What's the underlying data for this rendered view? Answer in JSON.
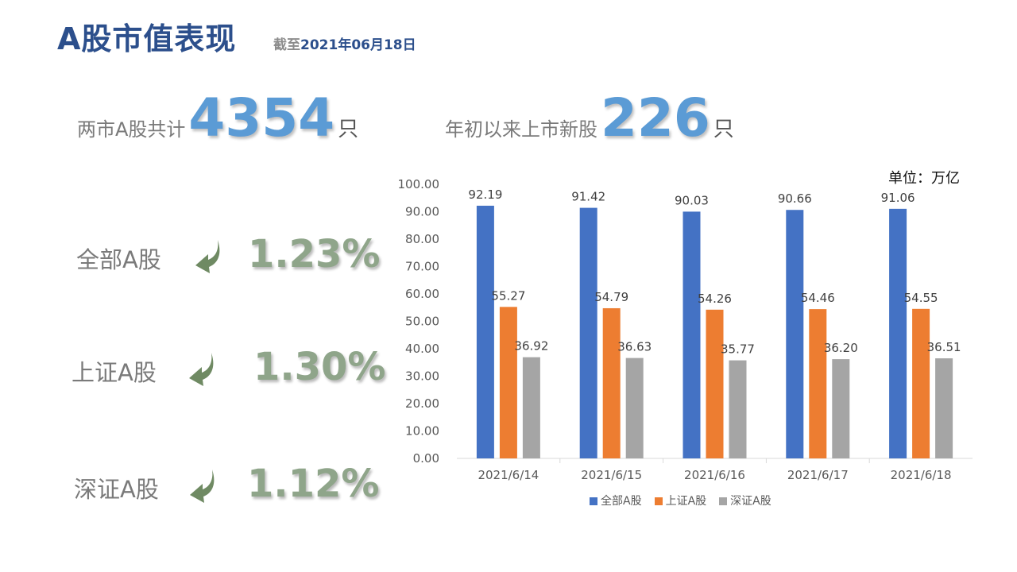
{
  "header": {
    "title": "A股市值表现",
    "asof_label": "截至",
    "asof_date": "2021年06月18日"
  },
  "stats": [
    {
      "label": "两市A股共计",
      "value": "4354",
      "unit": "只"
    },
    {
      "label": "年初以来上市新股",
      "value": "226",
      "unit": "只"
    }
  ],
  "changes": [
    {
      "name": "全部A股",
      "pct": "1.23%",
      "direction": "down"
    },
    {
      "name": "上证A股",
      "pct": "1.30%",
      "direction": "down"
    },
    {
      "name": "深证A股",
      "pct": "1.12%",
      "direction": "down"
    }
  ],
  "colors": {
    "title": "#2c4f8c",
    "stat_number": "#5b9bd5",
    "change_text": "#8fa58a",
    "arrow": "#6f8a63"
  },
  "chart_data": {
    "type": "bar",
    "unit_label": "单位：万亿",
    "categories": [
      "2021/6/14",
      "2021/6/15",
      "2021/6/16",
      "2021/6/17",
      "2021/6/18"
    ],
    "series": [
      {
        "name": "全部A股",
        "color": "#4472c4",
        "values": [
          92.19,
          91.42,
          90.03,
          90.66,
          91.06
        ],
        "labels": [
          "92.19",
          "91.42",
          "90.03",
          "90.66",
          "91.06"
        ]
      },
      {
        "name": "上证A股",
        "color": "#ed7d31",
        "values": [
          55.27,
          54.79,
          54.26,
          54.46,
          54.55
        ],
        "labels": [
          "55.27",
          "54.79",
          "54.26",
          "54.46",
          "54.55"
        ]
      },
      {
        "name": "深证A股",
        "color": "#a5a5a5",
        "values": [
          36.92,
          36.63,
          35.77,
          36.2,
          36.51
        ],
        "labels": [
          "36.92",
          "36.63",
          "35.77",
          "36.20",
          "36.51"
        ]
      }
    ],
    "ylim": [
      0,
      100
    ],
    "yticks": [
      "0.00",
      "10.00",
      "20.00",
      "30.00",
      "40.00",
      "50.00",
      "60.00",
      "70.00",
      "80.00",
      "90.00",
      "100.00"
    ],
    "grid": false,
    "legend": "bottom"
  }
}
